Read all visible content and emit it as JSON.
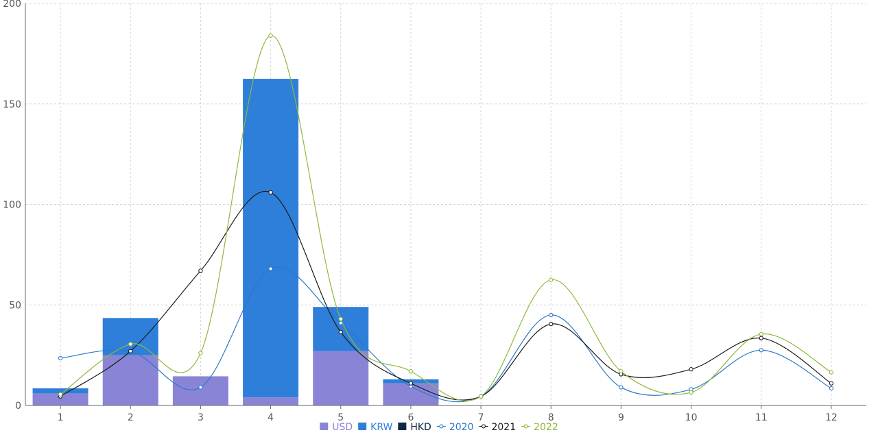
{
  "chart_data": {
    "type": "bar",
    "stacked_bars": true,
    "categories": [
      "1",
      "2",
      "3",
      "4",
      "5",
      "6",
      "7",
      "8",
      "9",
      "10",
      "11",
      "12"
    ],
    "ylim": [
      0,
      200
    ],
    "yticks": [
      0,
      50,
      100,
      150,
      200
    ],
    "grid": true,
    "legend_position": "bottom-center",
    "bar_series": [
      {
        "name": "USD",
        "color": "#8a84d6",
        "values": [
          6,
          25,
          14.5,
          4,
          27,
          11,
          0,
          0,
          0,
          0,
          0,
          0
        ]
      },
      {
        "name": "KRW",
        "color": "#2e7fd9",
        "values": [
          2.5,
          18.5,
          0,
          158.5,
          22,
          2,
          0,
          0,
          0,
          0,
          0,
          0
        ]
      },
      {
        "name": "HKD",
        "color": "#0f2740",
        "values": [
          0,
          0,
          0,
          0,
          0,
          0,
          0,
          0,
          0,
          0,
          0,
          0
        ]
      }
    ],
    "line_series": [
      {
        "name": "2020",
        "color": "#2b78c9",
        "values": [
          23.5,
          27,
          9,
          68,
          41,
          9.5,
          4.5,
          45,
          9,
          8,
          27.5,
          8.5
        ]
      },
      {
        "name": "2021",
        "color": "#1a1a1a",
        "values": [
          4.5,
          27,
          67,
          106,
          36.5,
          11,
          4.5,
          40.5,
          15.5,
          18,
          33.5,
          11
        ]
      },
      {
        "name": "2022",
        "color": "#8fb83a",
        "values": [
          5.5,
          30.5,
          26,
          184,
          43,
          17,
          4.5,
          62.5,
          17,
          6.5,
          35.5,
          16.5
        ]
      }
    ]
  }
}
